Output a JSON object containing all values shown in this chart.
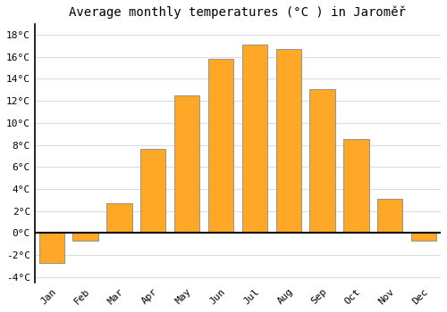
{
  "title": "Average monthly temperatures (°C ) in Jaroměř",
  "months": [
    "Jan",
    "Feb",
    "Mar",
    "Apr",
    "May",
    "Jun",
    "Jul",
    "Aug",
    "Sep",
    "Oct",
    "Nov",
    "Dec"
  ],
  "values": [
    -2.7,
    -0.7,
    2.7,
    7.6,
    12.5,
    15.8,
    17.1,
    16.7,
    13.1,
    8.5,
    3.1,
    -0.7
  ],
  "bar_color": "#FFA726",
  "bar_edge_color": "#888888",
  "ylim": [
    -4.5,
    19
  ],
  "yticks": [
    -4,
    -2,
    0,
    2,
    4,
    6,
    8,
    10,
    12,
    14,
    16,
    18
  ],
  "background_color": "#FFFFFF",
  "grid_color": "#DDDDDD",
  "zero_line_color": "#000000",
  "left_spine_color": "#000000",
  "title_fontsize": 10,
  "tick_fontsize": 8,
  "bar_width": 0.75
}
